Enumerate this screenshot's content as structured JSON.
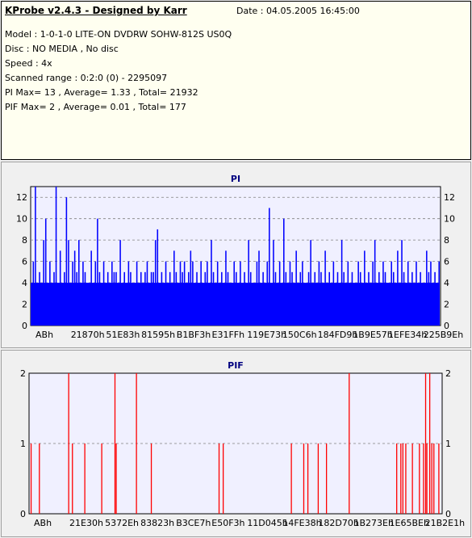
{
  "info": {
    "title": "KProbe v2.4.3 - Designed by Karr",
    "date": "Date : 04.05.2005 16:45:00",
    "model": "Model : 1-0-1-0 LITE-ON DVDRW SOHW-812S  US0Q",
    "disc": "Disc : NO MEDIA , No disc",
    "speed": "Speed : 4x",
    "scanned": "Scanned range : 0:2:0 (0) - 2295097",
    "pi": "PI Max= 13 , Average= 1.33 , Total= 21932",
    "pif": "PIF Max= 2 , Average= 0.01 , Total= 177"
  },
  "colors": {
    "pi_fill": "#0000ff",
    "pif_fill": "#ff0000",
    "plot_bg": "#f0f0ff",
    "title": "#000080"
  },
  "chart_data": [
    {
      "type": "bar",
      "title": "PI",
      "ylim": [
        0,
        13
      ],
      "yticks": [
        0,
        2,
        4,
        6,
        8,
        10,
        12
      ],
      "xtick_labels": [
        "ABh",
        "21870h",
        "51E83h",
        "81595h",
        "B1BF3h",
        "E31FFh",
        "119E73h",
        "150C6h",
        "184FD9h",
        "1B9E57h",
        "1EFE34h",
        "225B9Eh"
      ],
      "grid": true,
      "baseline": 4,
      "values": [
        4,
        6,
        13,
        4,
        5,
        4,
        8,
        10,
        4,
        6,
        4,
        5,
        13,
        4,
        7,
        4,
        5,
        12,
        8,
        4,
        6,
        7,
        5,
        8,
        4,
        6,
        5,
        4,
        4,
        7,
        4,
        6,
        10,
        5,
        4,
        6,
        4,
        5,
        4,
        6,
        5,
        5,
        4,
        8,
        3,
        5,
        4,
        6,
        5,
        4,
        3,
        6,
        4,
        5,
        4,
        5,
        6,
        4,
        5,
        5,
        8,
        9,
        4,
        5,
        4,
        6,
        4,
        5,
        4,
        7,
        5,
        4,
        6,
        5,
        6,
        4,
        5,
        7,
        6,
        4,
        5,
        4,
        6,
        4,
        5,
        6,
        4,
        8,
        5,
        4,
        6,
        4,
        5,
        4,
        7,
        5,
        4,
        4,
        6,
        5,
        4,
        6,
        4,
        5,
        4,
        8,
        5,
        4,
        4,
        6,
        7,
        4,
        5,
        4,
        6,
        11,
        4,
        8,
        5,
        4,
        6,
        4,
        10,
        5,
        4,
        6,
        5,
        4,
        7,
        4,
        5,
        6,
        4,
        4,
        5,
        8,
        4,
        5,
        4,
        6,
        5,
        4,
        7,
        4,
        5,
        4,
        6,
        4,
        5,
        4,
        8,
        5,
        4,
        6,
        4,
        5,
        4,
        4,
        6,
        5,
        4,
        7,
        4,
        5,
        4,
        6,
        8,
        4,
        5,
        4,
        6,
        5,
        4,
        4,
        6,
        5,
        4,
        7,
        4,
        8,
        5,
        4,
        6,
        4,
        5,
        4,
        6,
        4,
        5,
        4,
        4,
        7,
        5,
        6,
        4,
        5,
        4,
        6
      ]
    },
    {
      "type": "bar",
      "title": "PIF",
      "ylim": [
        0,
        2
      ],
      "yticks": [
        0,
        1,
        2
      ],
      "xtick_labels": [
        "ABh",
        "21E30h",
        "5372Eh",
        "83823h",
        "B3CE7h",
        "E50F3h",
        "11D045h",
        "14FE38h",
        "182D70h",
        "1B273Eh",
        "1E65BEh",
        "21B2E1h"
      ],
      "grid": true,
      "spikes": [
        {
          "x": 0.005,
          "v": 1
        },
        {
          "x": 0.025,
          "v": 1
        },
        {
          "x": 0.096,
          "v": 2
        },
        {
          "x": 0.105,
          "v": 1
        },
        {
          "x": 0.135,
          "v": 1
        },
        {
          "x": 0.176,
          "v": 1
        },
        {
          "x": 0.208,
          "v": 2
        },
        {
          "x": 0.211,
          "v": 1
        },
        {
          "x": 0.26,
          "v": 2
        },
        {
          "x": 0.296,
          "v": 1
        },
        {
          "x": 0.46,
          "v": 1
        },
        {
          "x": 0.47,
          "v": 1
        },
        {
          "x": 0.635,
          "v": 1
        },
        {
          "x": 0.665,
          "v": 1
        },
        {
          "x": 0.675,
          "v": 1
        },
        {
          "x": 0.7,
          "v": 1
        },
        {
          "x": 0.72,
          "v": 1
        },
        {
          "x": 0.775,
          "v": 2
        },
        {
          "x": 0.89,
          "v": 1
        },
        {
          "x": 0.9,
          "v": 1
        },
        {
          "x": 0.905,
          "v": 1
        },
        {
          "x": 0.912,
          "v": 1
        },
        {
          "x": 0.928,
          "v": 1
        },
        {
          "x": 0.945,
          "v": 1
        },
        {
          "x": 0.955,
          "v": 1
        },
        {
          "x": 0.96,
          "v": 2
        },
        {
          "x": 0.963,
          "v": 1
        },
        {
          "x": 0.97,
          "v": 2
        },
        {
          "x": 0.975,
          "v": 1
        },
        {
          "x": 0.98,
          "v": 1
        },
        {
          "x": 0.992,
          "v": 1
        }
      ]
    }
  ]
}
